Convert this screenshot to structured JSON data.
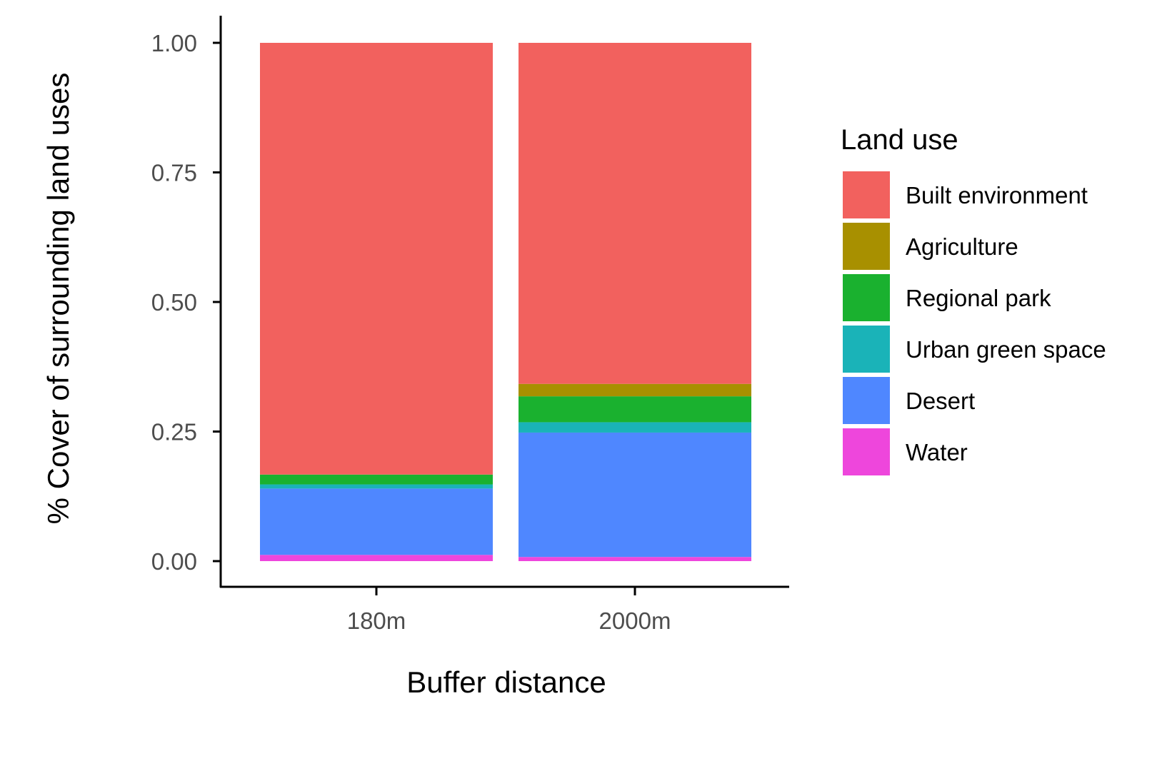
{
  "chart_data": {
    "type": "bar",
    "stacked": true,
    "xlabel": "Buffer distance",
    "ylabel": "% Cover of surrounding land uses",
    "ylim": [
      0,
      1
    ],
    "yticks": [
      "0.00",
      "0.25",
      "0.50",
      "0.75",
      "1.00"
    ],
    "categories": [
      "180m",
      "2000m"
    ],
    "legend": {
      "title": "Land use",
      "position": "right"
    },
    "grid": false,
    "series": [
      {
        "name": "Built environment",
        "color": "#F2615E",
        "values": [
          0.833,
          0.658
        ]
      },
      {
        "name": "Agriculture",
        "color": "#A89000",
        "values": [
          0.0,
          0.024
        ]
      },
      {
        "name": "Regional park",
        "color": "#1AB12F",
        "values": [
          0.019,
          0.05
        ]
      },
      {
        "name": "Urban green space",
        "color": "#1AB3B8",
        "values": [
          0.008,
          0.02
        ]
      },
      {
        "name": "Desert",
        "color": "#4F87FF",
        "values": [
          0.128,
          0.24
        ]
      },
      {
        "name": "Water",
        "color": "#EE46DC",
        "values": [
          0.012,
          0.008
        ]
      }
    ]
  }
}
